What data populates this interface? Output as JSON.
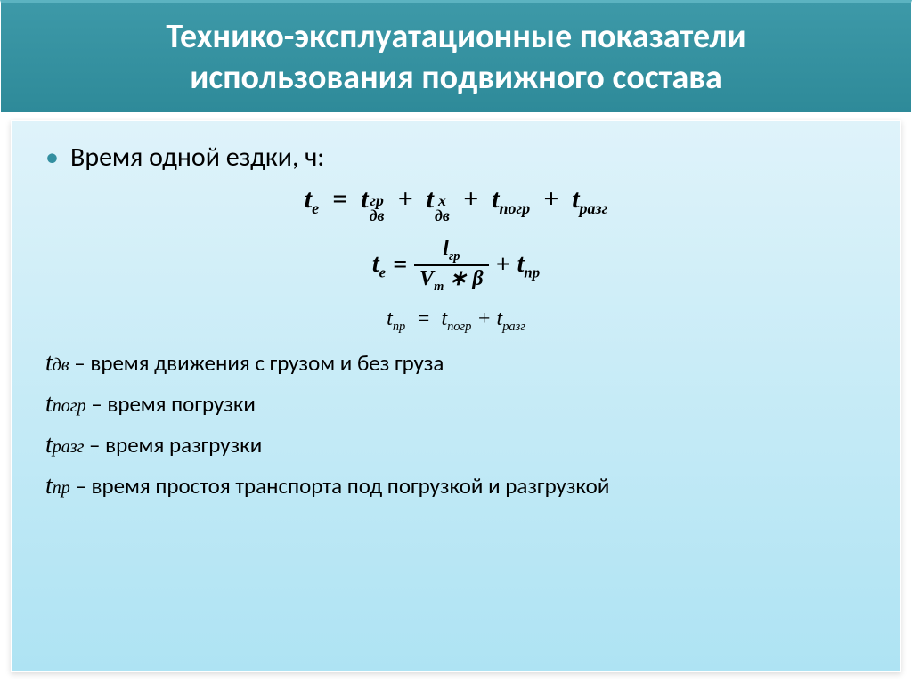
{
  "title_line1": "Технико-эксплуатационные показатели",
  "title_line2": "использования подвижного состава",
  "bullet_text": "Время одной ездки, ч:",
  "formulas": {
    "f1": {
      "lhs_base": "t",
      "lhs_sub": "е",
      "t1_base": "t",
      "t1_sup": "гр",
      "t1_sub": "дв",
      "t2_base": "t",
      "t2_sup": "x",
      "t2_sub": "дв",
      "t3_base": "t",
      "t3_sub": "погр",
      "t4_base": "t",
      "t4_sub": "разг"
    },
    "f2": {
      "lhs_base": "t",
      "lhs_sub": "е",
      "num_base": "l",
      "num_sub": "гр",
      "den_left_base": "V",
      "den_left_sub": "т",
      "den_op": "∗",
      "den_right": "β",
      "plus_base": "t",
      "plus_sub": "пр"
    },
    "f3": {
      "lhs_base": "t",
      "lhs_sub": "пр",
      "r1_base": "t",
      "r1_sub": "погр",
      "r2_base": "t",
      "r2_sub": "разг"
    }
  },
  "definitions": [
    {
      "sym": "t",
      "sub": "дв",
      "text": " – время движения с грузом и без груза"
    },
    {
      "sym": "t",
      "sub": "погр",
      "text": " – время погрузки"
    },
    {
      "sym": "t",
      "sub": "разг",
      "text": " – время разгрузки"
    },
    {
      "sym": "t",
      "sub": "пр",
      "text": " – время простоя транспорта под погрузкой и разгрузкой"
    }
  ],
  "colors": {
    "title_bg_top": "#3d99a8",
    "title_bg_bottom": "#2e8a99",
    "title_text": "#ffffff",
    "content_bg_top": "#dff3fa",
    "content_bg_bottom": "#aee3f3",
    "bullet_color": "#338fa0",
    "text_color": "#000000"
  },
  "typography": {
    "title_fontsize": 38,
    "bullet_fontsize": 30,
    "formula1_fontsize": 30,
    "formula2_fontsize": 28,
    "formula3_fontsize": 24,
    "def_fontsize": 25
  }
}
